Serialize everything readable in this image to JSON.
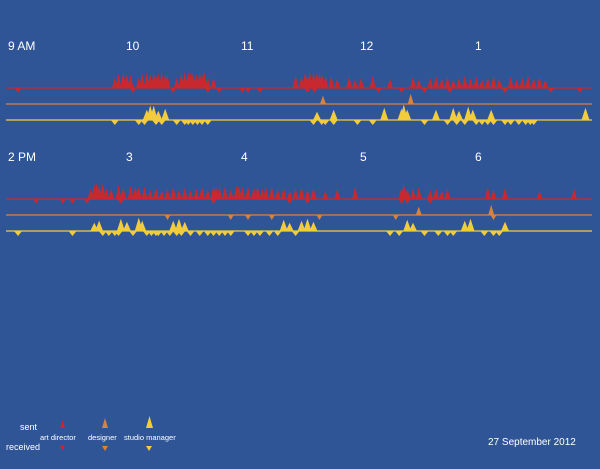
{
  "date": "27 September 2012",
  "colors": {
    "background": "#2f5597",
    "art_director": "#c8292e",
    "designer": "#d9823a",
    "studio_manager": "#f3cc3c"
  },
  "legend": {
    "sent": "sent",
    "received": "received",
    "roles": [
      "art director",
      "designer",
      "studio manager"
    ]
  },
  "chart_data": {
    "type": "scatter",
    "description_hidden": "",
    "panels": [
      {
        "hour_labels": [
          "9 AM",
          "10",
          "11",
          "12",
          "1"
        ],
        "start_hour": 9,
        "end_hour": 14,
        "series": [
          {
            "role": "art director",
            "sent": [
              9.85,
              9.88,
              9.92,
              9.95,
              9.98,
              10.05,
              10.08,
              10.12,
              10.15,
              10.18,
              10.2,
              10.22,
              10.25,
              10.28,
              10.3,
              10.38,
              10.42,
              10.45,
              10.48,
              10.5,
              10.52,
              10.55,
              10.58,
              10.6,
              10.62,
              10.65,
              10.7,
              11.4,
              11.45,
              11.48,
              11.5,
              11.52,
              11.55,
              11.58,
              11.6,
              11.62,
              11.65,
              11.7,
              11.75,
              11.85,
              11.9,
              11.95,
              12.05,
              12.2,
              12.4,
              12.45,
              12.55,
              12.6,
              12.65,
              12.7,
              12.75,
              12.8,
              12.85,
              12.9,
              12.95,
              13.0,
              13.05,
              13.1,
              13.15,
              13.25,
              13.3,
              13.35,
              13.4,
              13.45,
              13.5,
              13.55
            ],
            "received": [
              9.05,
              10.0,
              10.35,
              10.65,
              10.75,
              10.95,
              11.0,
              11.1,
              11.5,
              11.56,
              12.1,
              12.3,
              12.5,
              12.72,
              13.2,
              13.2,
              13.6,
              13.85
            ]
          },
          {
            "role": "designer",
            "sent": [
              11.63,
              12.38
            ],
            "received": []
          },
          {
            "role": "studio manager",
            "sent": [
              10.12,
              10.15,
              10.18,
              10.22,
              10.28,
              11.58,
              11.72,
              12.15,
              12.3,
              12.32,
              12.35,
              12.6,
              12.75,
              12.8,
              12.88,
              12.92,
              13.08,
              13.9
            ],
            "received": [
              9.85,
              10.05,
              10.1,
              10.2,
              10.25,
              10.38,
              10.45,
              10.48,
              10.52,
              10.56,
              10.6,
              10.65,
              11.55,
              11.62,
              11.65,
              11.72,
              11.92,
              12.05,
              12.5,
              12.7,
              12.78,
              12.85,
              12.95,
              13.0,
              13.05,
              13.1,
              13.2,
              13.25,
              13.32,
              13.38,
              13.42,
              13.45
            ]
          }
        ]
      },
      {
        "hour_labels": [
          "2 PM",
          "3",
          "4",
          "5",
          "6"
        ],
        "start_hour": 14,
        "end_hour": 19,
        "series": [
          {
            "role": "art director",
            "sent": [
              14.65,
              14.68,
              14.7,
              14.72,
              14.75,
              14.78,
              14.82,
              14.88,
              14.92,
              14.98,
              15.02,
              15.05,
              15.1,
              15.15,
              15.2,
              15.25,
              15.3,
              15.35,
              15.4,
              15.45,
              15.5,
              15.55,
              15.6,
              15.65,
              15.7,
              15.72,
              15.75,
              15.8,
              15.85,
              15.9,
              15.92,
              15.95,
              16.0,
              16.05,
              16.08,
              16.12,
              16.15,
              16.2,
              16.25,
              16.3,
              16.35,
              16.4,
              16.45,
              16.5,
              16.55,
              16.65,
              16.75,
              16.9,
              17.3,
              17.32,
              17.35,
              17.4,
              17.45,
              17.55,
              17.6,
              17.65,
              17.7,
              18.05,
              18.1,
              18.2,
              18.5,
              18.8
            ],
            "received": [
              14.2,
              14.42,
              14.5,
              14.62,
              14.9,
              15.7,
              16.35,
              16.5,
              17.3,
              17.35,
              17.55
            ]
          },
          {
            "role": "designer",
            "sent": [
              17.45,
              18.08
            ],
            "received": [
              15.3,
              15.85,
              16.0,
              16.2,
              16.6,
              17.25,
              18.1
            ]
          },
          {
            "role": "studio manager",
            "sent": [
              14.68,
              14.72,
              14.9,
              14.95,
              15.05,
              15.08,
              15.35,
              15.4,
              15.45,
              16.3,
              16.35,
              16.45,
              16.5,
              16.55,
              17.35,
              17.4,
              17.85,
              17.9,
              18.2
            ],
            "received": [
              14.05,
              14.5,
              14.75,
              14.8,
              14.85,
              14.88,
              15.0,
              15.12,
              15.16,
              15.2,
              15.22,
              15.27,
              15.32,
              15.38,
              15.42,
              15.5,
              15.58,
              15.65,
              15.7,
              15.75,
              15.8,
              15.85,
              16.0,
              16.05,
              16.1,
              16.18,
              16.25,
              16.4,
              17.2,
              17.28,
              17.5,
              17.62,
              17.7,
              17.75,
              18.02,
              18.1,
              18.15
            ]
          }
        ]
      }
    ]
  }
}
